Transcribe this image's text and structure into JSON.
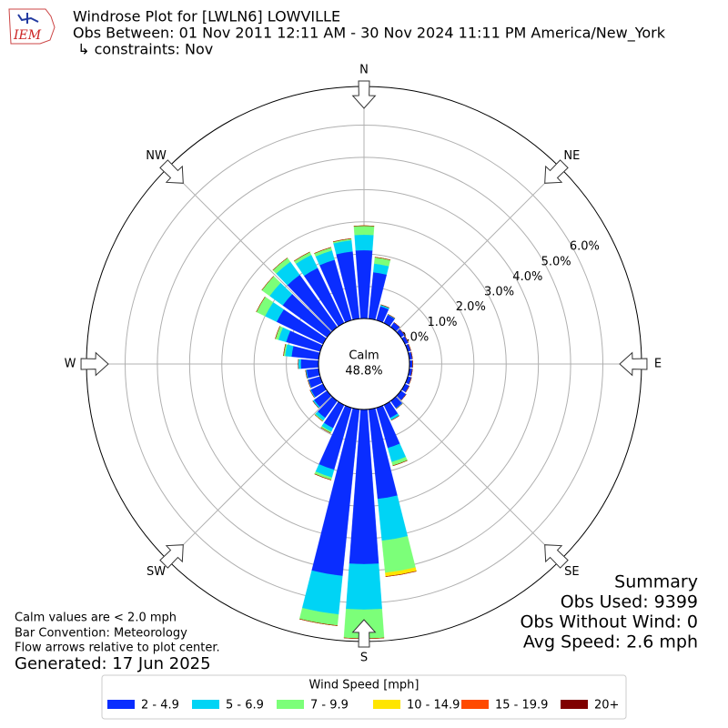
{
  "chart_data": {
    "type": "windrose",
    "logo_text": "IEM",
    "title_lines": [
      "Windrose Plot for [LWLN6] LOWVILLE",
      "Obs Between: 01 Nov 2011 12:11 AM - 30 Nov 2024 11:11 PM America/New_York",
      " ↳ constraints: Nov"
    ],
    "calm": {
      "label": "Calm",
      "value": 48.8,
      "value_label": "48.8%"
    },
    "theta_ticks": [
      {
        "value": 0,
        "label": "N"
      },
      {
        "value": 45,
        "label": "NE"
      },
      {
        "value": 90,
        "label": "E"
      },
      {
        "value": 135,
        "label": "SE"
      },
      {
        "value": 180,
        "label": "S"
      },
      {
        "value": 225,
        "label": "SW"
      },
      {
        "value": 270,
        "label": "W"
      },
      {
        "value": 315,
        "label": "NW"
      }
    ],
    "rlim": [
      0,
      7.2
    ],
    "rticks": [
      {
        "value": 0,
        "label": "0.0%"
      },
      {
        "value": 1,
        "label": "1.0%"
      },
      {
        "value": 2,
        "label": "2.0%"
      },
      {
        "value": 3,
        "label": "3.0%"
      },
      {
        "value": 4,
        "label": "4.0%"
      },
      {
        "value": 5,
        "label": "5.0%"
      },
      {
        "value": 6,
        "label": "6.0%"
      }
    ],
    "grid": true,
    "directions": [
      0,
      10,
      20,
      30,
      40,
      50,
      60,
      70,
      80,
      90,
      100,
      110,
      120,
      130,
      140,
      150,
      160,
      170,
      180,
      190,
      200,
      210,
      220,
      230,
      240,
      250,
      260,
      270,
      280,
      290,
      300,
      310,
      320,
      330,
      340,
      350
    ],
    "legend_title": "Wind Speed [mph]",
    "series": [
      {
        "name": "2 - 4.9",
        "color": "#0a2dff",
        "values": [
          2.12,
          1.45,
          0.45,
          0.28,
          0.18,
          0.14,
          0.12,
          0.1,
          0.1,
          0.1,
          0.1,
          0.12,
          0.15,
          0.2,
          0.28,
          0.45,
          1.3,
          2.8,
          4.8,
          5.2,
          2.0,
          0.8,
          0.65,
          0.5,
          0.42,
          0.38,
          0.38,
          0.55,
          0.85,
          1.1,
          1.6,
          1.7,
          2.0,
          1.9,
          1.95,
          2.1
        ]
      },
      {
        "name": "5 - 6.9",
        "color": "#00d4f5",
        "values": [
          0.48,
          0.27,
          0.05,
          0.02,
          0,
          0,
          0,
          0,
          0,
          0,
          0,
          0,
          0,
          0,
          0.02,
          0.08,
          0.45,
          1.3,
          1.41,
          1.2,
          0.25,
          0.12,
          0.1,
          0.05,
          0.03,
          0.02,
          0.03,
          0.08,
          0.2,
          0.25,
          0.4,
          0.5,
          0.5,
          0.45,
          0.3,
          0.35
        ]
      },
      {
        "name": "7 - 9.9",
        "color": "#7cff79",
        "values": [
          0.28,
          0.2,
          0,
          0,
          0,
          0,
          0,
          0,
          0,
          0,
          0,
          0,
          0,
          0,
          0,
          0,
          0.12,
          1.0,
          0.9,
          0.35,
          0.08,
          0.05,
          0.03,
          0,
          0,
          0,
          0,
          0,
          0.05,
          0.1,
          0.3,
          0.3,
          0.15,
          0.1,
          0.1,
          0.05
        ]
      },
      {
        "name": "10 - 14.9",
        "color": "#ffe500",
        "values": [
          0,
          0,
          0,
          0,
          0,
          0,
          0,
          0,
          0,
          0,
          0,
          0,
          0,
          0,
          0,
          0,
          0,
          0.12,
          0,
          0,
          0,
          0,
          0,
          0,
          0,
          0,
          0,
          0,
          0,
          0,
          0,
          0,
          0,
          0,
          0,
          0
        ]
      },
      {
        "name": "15 - 19.9",
        "color": "#ff4a00",
        "values": [
          0,
          0,
          0,
          0,
          0,
          0,
          0,
          0,
          0,
          0,
          0,
          0,
          0,
          0,
          0,
          0,
          0,
          0,
          0,
          0,
          0,
          0,
          0,
          0,
          0,
          0,
          0,
          0,
          0,
          0,
          0,
          0,
          0,
          0,
          0,
          0
        ]
      },
      {
        "name": "20+",
        "color": "#7f0000",
        "values": [
          0,
          0,
          0,
          0,
          0,
          0,
          0,
          0,
          0,
          0,
          0,
          0,
          0,
          0,
          0,
          0,
          0,
          0,
          0,
          0,
          0,
          0,
          0,
          0,
          0,
          0,
          0,
          0,
          0,
          0,
          0,
          0,
          0,
          0,
          0,
          0
        ]
      }
    ],
    "notes": [
      "Calm values are < 2.0 mph",
      "Bar Convention: Meteorology",
      "Flow arrows relative to plot center."
    ],
    "generated": "Generated: 17 Jun 2025",
    "summary_lines": [
      "Summary",
      "Obs Used: 9399",
      "Obs Without Wind: 0",
      "Avg Speed: 2.6 mph"
    ]
  }
}
